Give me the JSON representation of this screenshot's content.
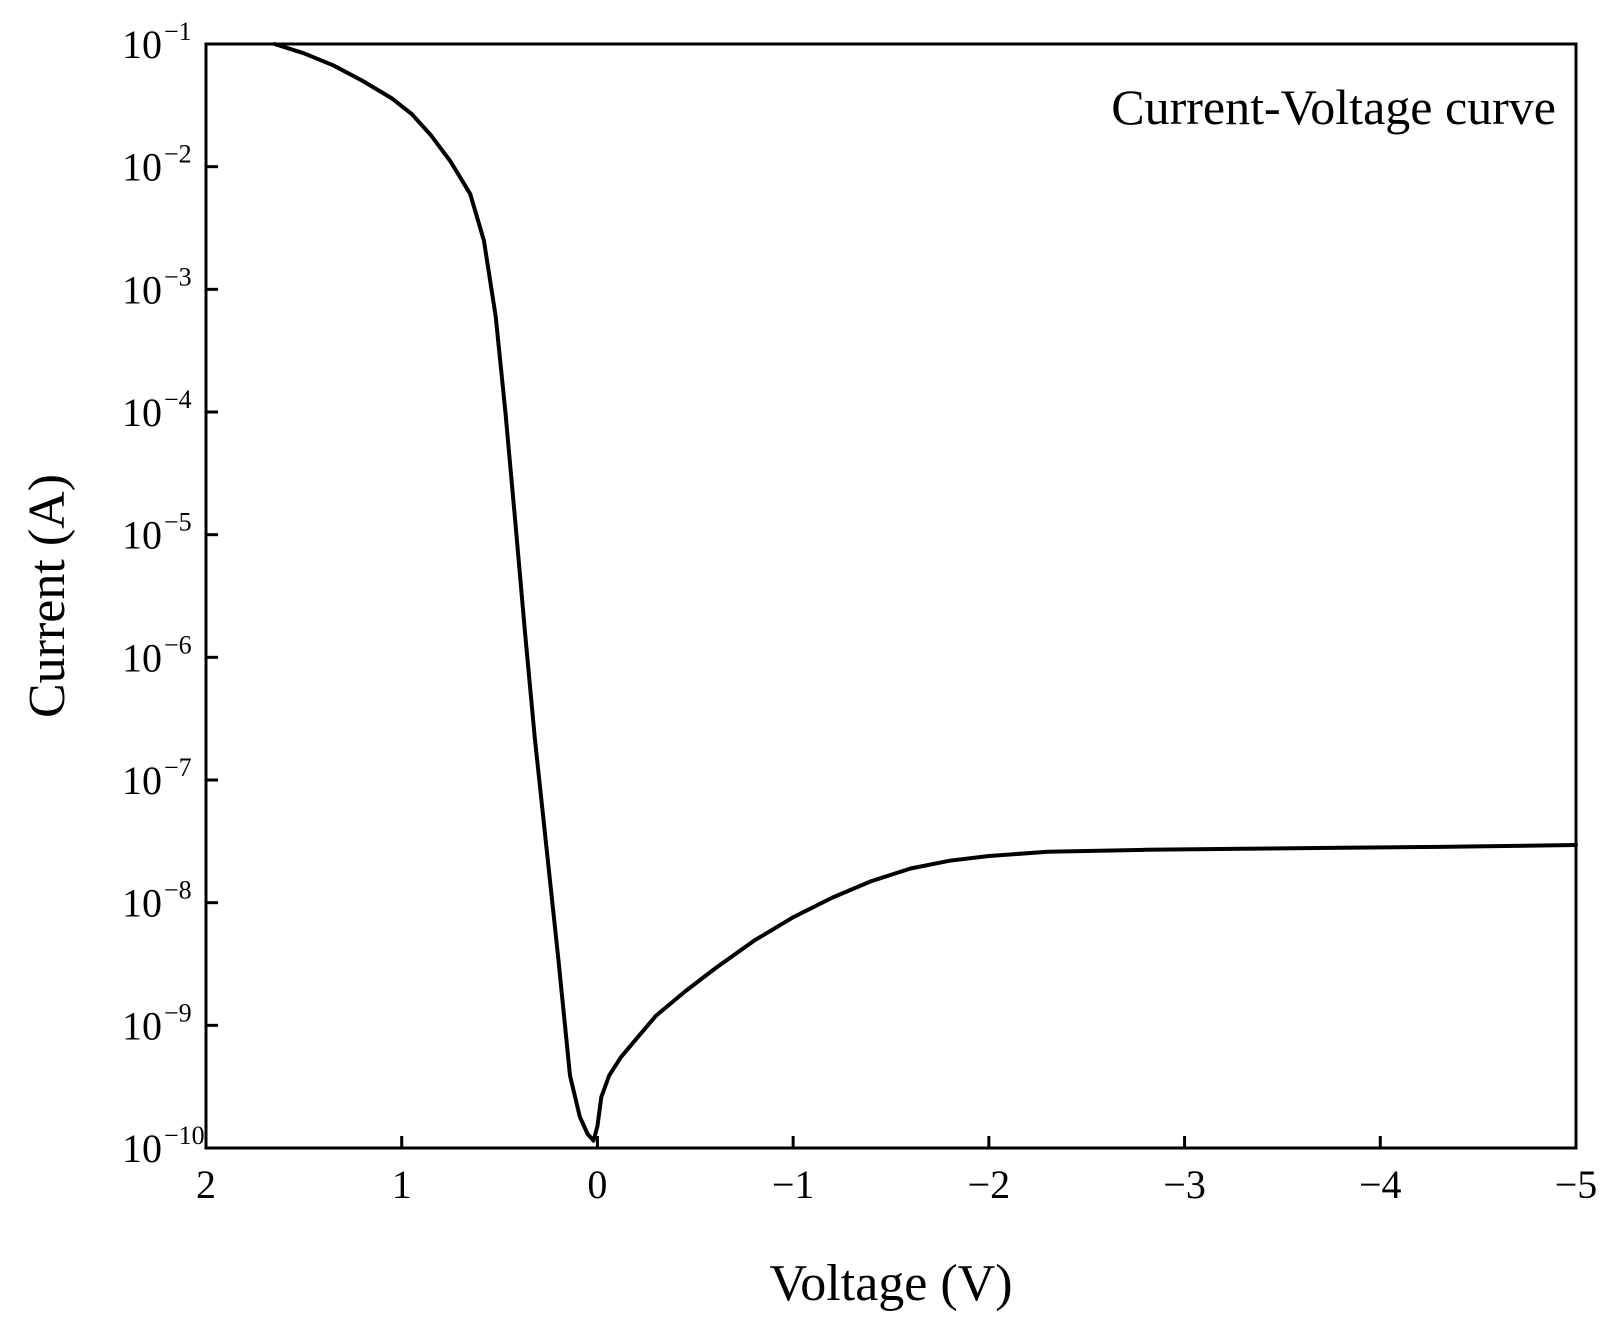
{
  "chart_data": {
    "type": "line",
    "title": "",
    "annotation": "Current-Voltage curve",
    "xlabel": "Voltage (V)",
    "ylabel": "Current (A)",
    "x_reversed": true,
    "xlim": [
      2,
      -5
    ],
    "ylim": [
      1e-10,
      0.1
    ],
    "y_scale": "log",
    "grid": false,
    "x_ticks": [
      2,
      1,
      0,
      -1,
      -2,
      -3,
      -4,
      -5
    ],
    "x_tick_labels": [
      "2",
      "1",
      "0",
      "−1",
      "−2",
      "−3",
      "−4",
      "−5"
    ],
    "y_ticks": [
      {
        "value": 0.1,
        "base": "10",
        "exp": "−1"
      },
      {
        "value": 0.01,
        "base": "10",
        "exp": "−2"
      },
      {
        "value": 0.001,
        "base": "10",
        "exp": "−3"
      },
      {
        "value": 0.0001,
        "base": "10",
        "exp": "−4"
      },
      {
        "value": 1e-05,
        "base": "10",
        "exp": "−5"
      },
      {
        "value": 1e-06,
        "base": "10",
        "exp": "−6"
      },
      {
        "value": 1e-07,
        "base": "10",
        "exp": "−7"
      },
      {
        "value": 1e-08,
        "base": "10",
        "exp": "−8"
      },
      {
        "value": 1e-09,
        "base": "10",
        "exp": "−9"
      },
      {
        "value": 1e-10,
        "base": "10",
        "exp": "−10"
      }
    ],
    "series": [
      {
        "color": "#000000",
        "x": [
          1.65,
          1.5,
          1.35,
          1.2,
          1.05,
          0.95,
          0.85,
          0.75,
          0.65,
          0.58,
          0.52,
          0.47,
          0.42,
          0.37,
          0.32,
          0.26,
          0.2,
          0.14,
          0.09,
          0.05,
          0.02,
          0.0,
          -0.02,
          -0.06,
          -0.12,
          -0.2,
          -0.3,
          -0.45,
          -0.6,
          -0.8,
          -1.0,
          -1.2,
          -1.4,
          -1.6,
          -1.8,
          -2.0,
          -2.3,
          -2.8,
          -3.3,
          -3.8,
          -4.3,
          -5.0
        ],
        "y": [
          0.1,
          0.084,
          0.067,
          0.05,
          0.036,
          0.027,
          0.018,
          0.011,
          0.006,
          0.0025,
          0.0006,
          0.0001,
          1.3e-05,
          1.6e-06,
          2.2e-07,
          2.8e-08,
          3.5e-09,
          3.9e-10,
          1.8e-10,
          1.3e-10,
          1.15e-10,
          1.5e-10,
          2.6e-10,
          3.9e-10,
          5.5e-10,
          7.8e-10,
          1.2e-09,
          1.9e-09,
          2.9e-09,
          4.9e-09,
          7.6e-09,
          1.1e-08,
          1.5e-08,
          1.9e-08,
          2.2e-08,
          2.4e-08,
          2.6e-08,
          2.7e-08,
          2.75e-08,
          2.8e-08,
          2.85e-08,
          2.95e-08
        ]
      }
    ]
  }
}
